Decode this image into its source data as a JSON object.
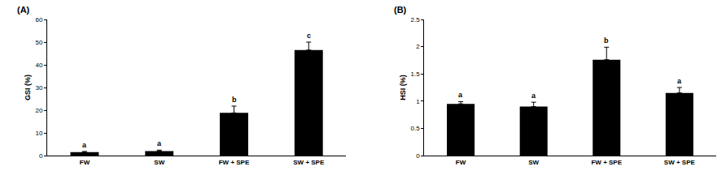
{
  "chart_data": [
    {
      "type": "bar",
      "title": "(A)",
      "y_label": "GSI (%)",
      "categories": [
        "FW",
        "SW",
        "FW + SPE",
        "SW + SPE"
      ],
      "values": [
        1.5,
        2.0,
        18.8,
        46.5
      ],
      "errors": [
        0.3,
        0.4,
        3.0,
        3.5
      ],
      "annotations": [
        "a",
        "a",
        "b",
        "c"
      ],
      "color": "#000000",
      "ylim": [
        0,
        60
      ],
      "yticks": [
        0,
        10,
        20,
        30,
        40,
        50,
        60
      ],
      "grid": false
    },
    {
      "type": "bar",
      "title": "(B)",
      "y_label": "HSI (%)",
      "categories": [
        "FW",
        "SW",
        "FW + SPE",
        "SW + SPE"
      ],
      "values": [
        0.95,
        0.9,
        1.76,
        1.15
      ],
      "errors": [
        0.04,
        0.08,
        0.23,
        0.1
      ],
      "annotations": [
        "a",
        "a",
        "b",
        "a"
      ],
      "color": "#000000",
      "ylim": [
        0,
        2.5
      ],
      "yticks": [
        0,
        0.5,
        1,
        1.5,
        2,
        2.5
      ],
      "grid": false
    }
  ]
}
